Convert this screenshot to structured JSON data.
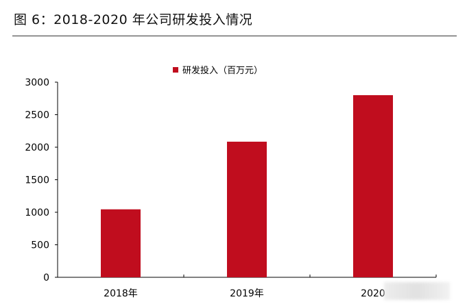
{
  "figure_title": "图 6：2018-2020 年公司研发投入情况",
  "colors": {
    "bar": "#c00d1e",
    "axis": "#000000"
  },
  "chart_data": {
    "type": "bar",
    "title": "",
    "xlabel": "",
    "ylabel": "",
    "categories": [
      "2018年",
      "2019年",
      "2020"
    ],
    "series": [
      {
        "name": "研发投入（百万元）",
        "values": [
          1045,
          2085,
          2800
        ]
      }
    ],
    "ylim": [
      0,
      3000
    ],
    "yticks": [
      "0",
      "500",
      "1000",
      "1500",
      "2000",
      "2500",
      "3000"
    ],
    "grid": false,
    "legend": "top-center"
  }
}
